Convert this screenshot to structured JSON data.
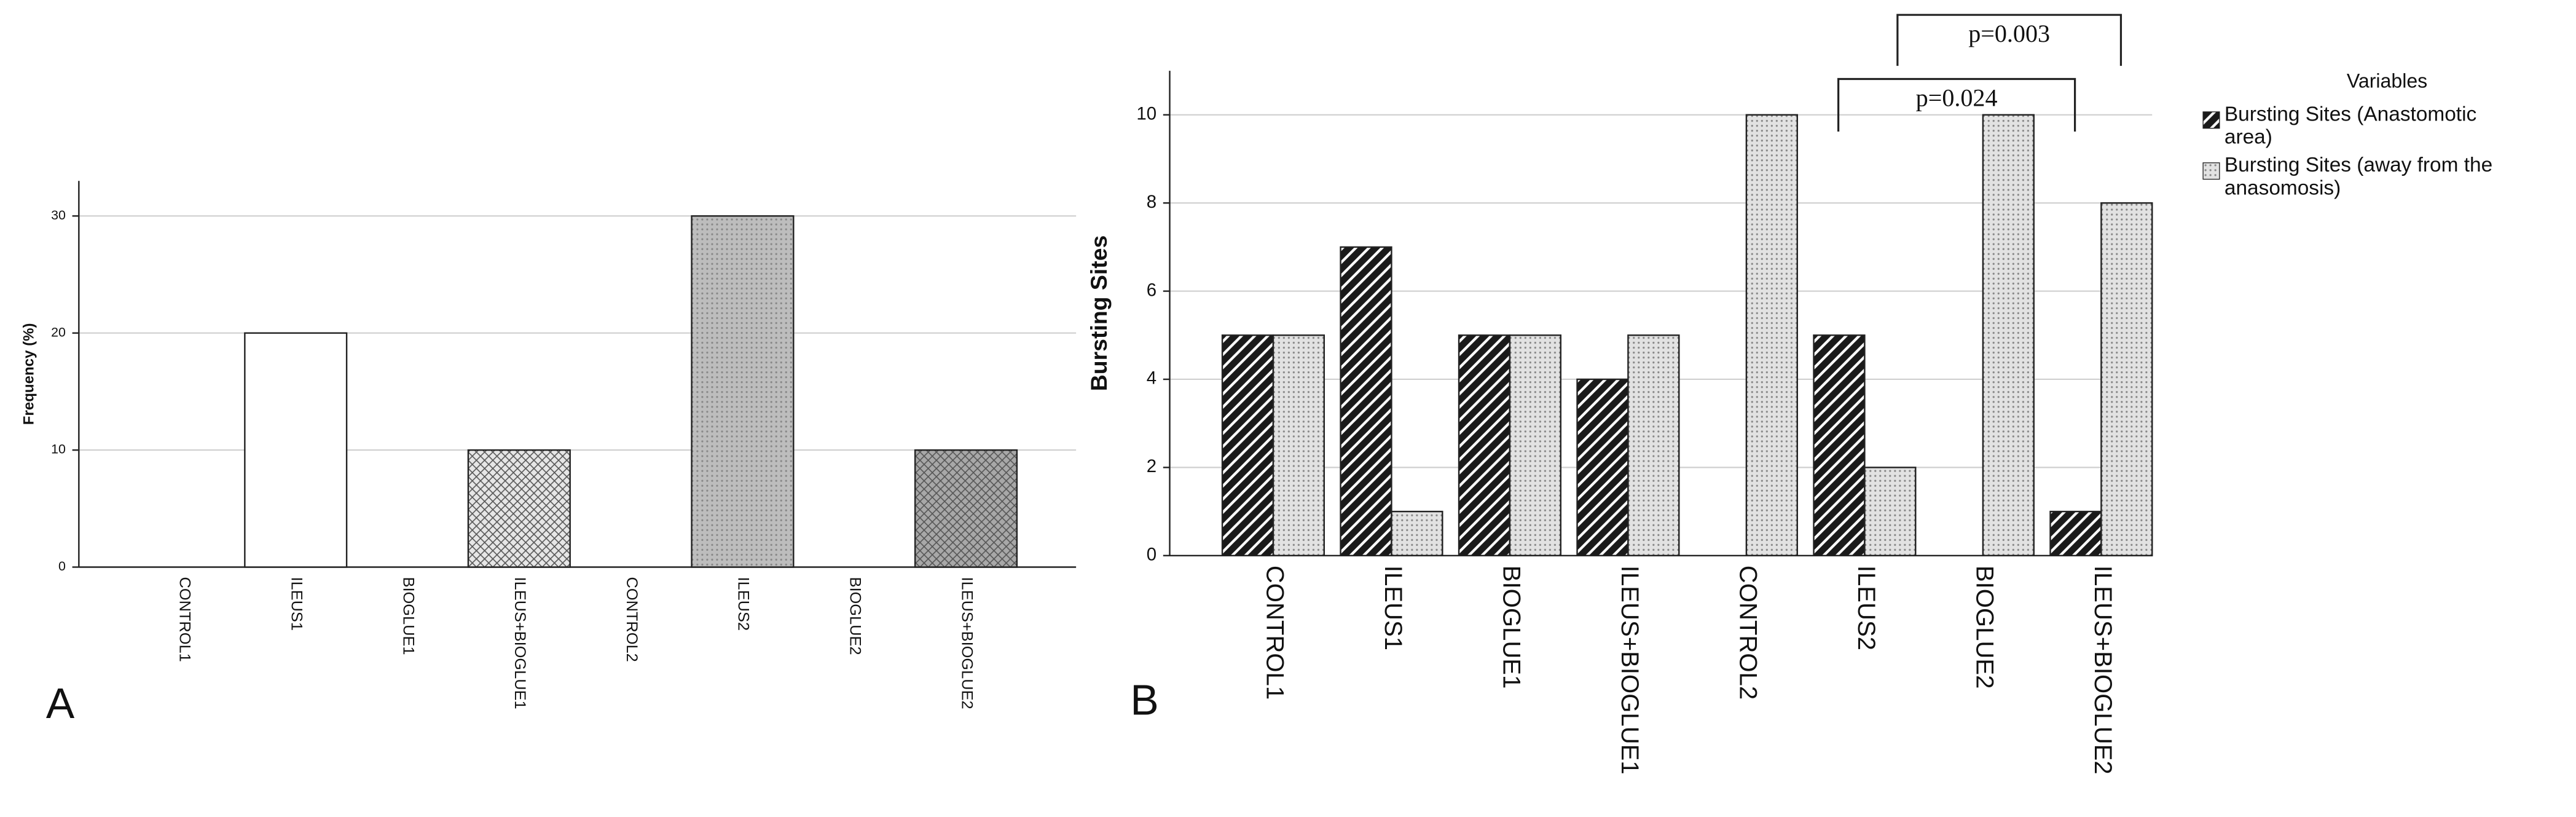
{
  "chart_data": [
    {
      "type": "bar",
      "panel_label": "A",
      "y_label": "Frequency (%)",
      "categories": [
        "CONTROL1",
        "ILEUS1",
        "BIOGLUE1",
        "ILEUS+BIOGLUE1",
        "CONTROL2",
        "ILEUS2",
        "BIOGLUE2",
        "ILEUS+BIOGLUE2"
      ],
      "values": [
        0,
        20,
        0,
        10,
        0,
        30,
        0,
        10
      ],
      "colors": [
        "#ffffff",
        "#ffffff",
        "#ffffff",
        "#e6e6e6",
        "#ffffff",
        "#bdbdbd",
        "#ffffff",
        "#a8a8a8"
      ],
      "hatch": [
        "none",
        "none",
        "none",
        "cross",
        "none",
        "dots",
        "none",
        "cross"
      ],
      "ylim": [
        0,
        33
      ],
      "yticks": [
        0,
        10,
        20,
        30
      ],
      "grid": true
    },
    {
      "type": "bar",
      "panel_label": "B",
      "y_label": "Bursting Sites",
      "legend_title": "Variables",
      "legend": "right",
      "categories": [
        "CONTROL1",
        "ILEUS1",
        "BIOGLUE1",
        "ILEUS+BIOGLUE1",
        "CONTROL2",
        "ILEUS2",
        "BIOGLUE2",
        "ILEUS+BIOGLUE2"
      ],
      "series": [
        {
          "name": "Bursting Sites (Anastomotic area)",
          "color": "#1a1a1a",
          "hatch": "diagonal",
          "values": [
            5,
            7,
            5,
            4,
            0,
            5,
            0,
            1
          ]
        },
        {
          "name": "Bursting Sites (away from the anasomosis)",
          "color": "#e2e2e2",
          "hatch": "dots",
          "values": [
            5,
            1,
            5,
            5,
            10,
            2,
            10,
            8
          ]
        }
      ],
      "annotations": [
        "p=0.024",
        "p=0.003"
      ],
      "ylim": [
        0,
        11
      ],
      "yticks": [
        0,
        2,
        4,
        6,
        8,
        10
      ],
      "grid": true
    }
  ]
}
